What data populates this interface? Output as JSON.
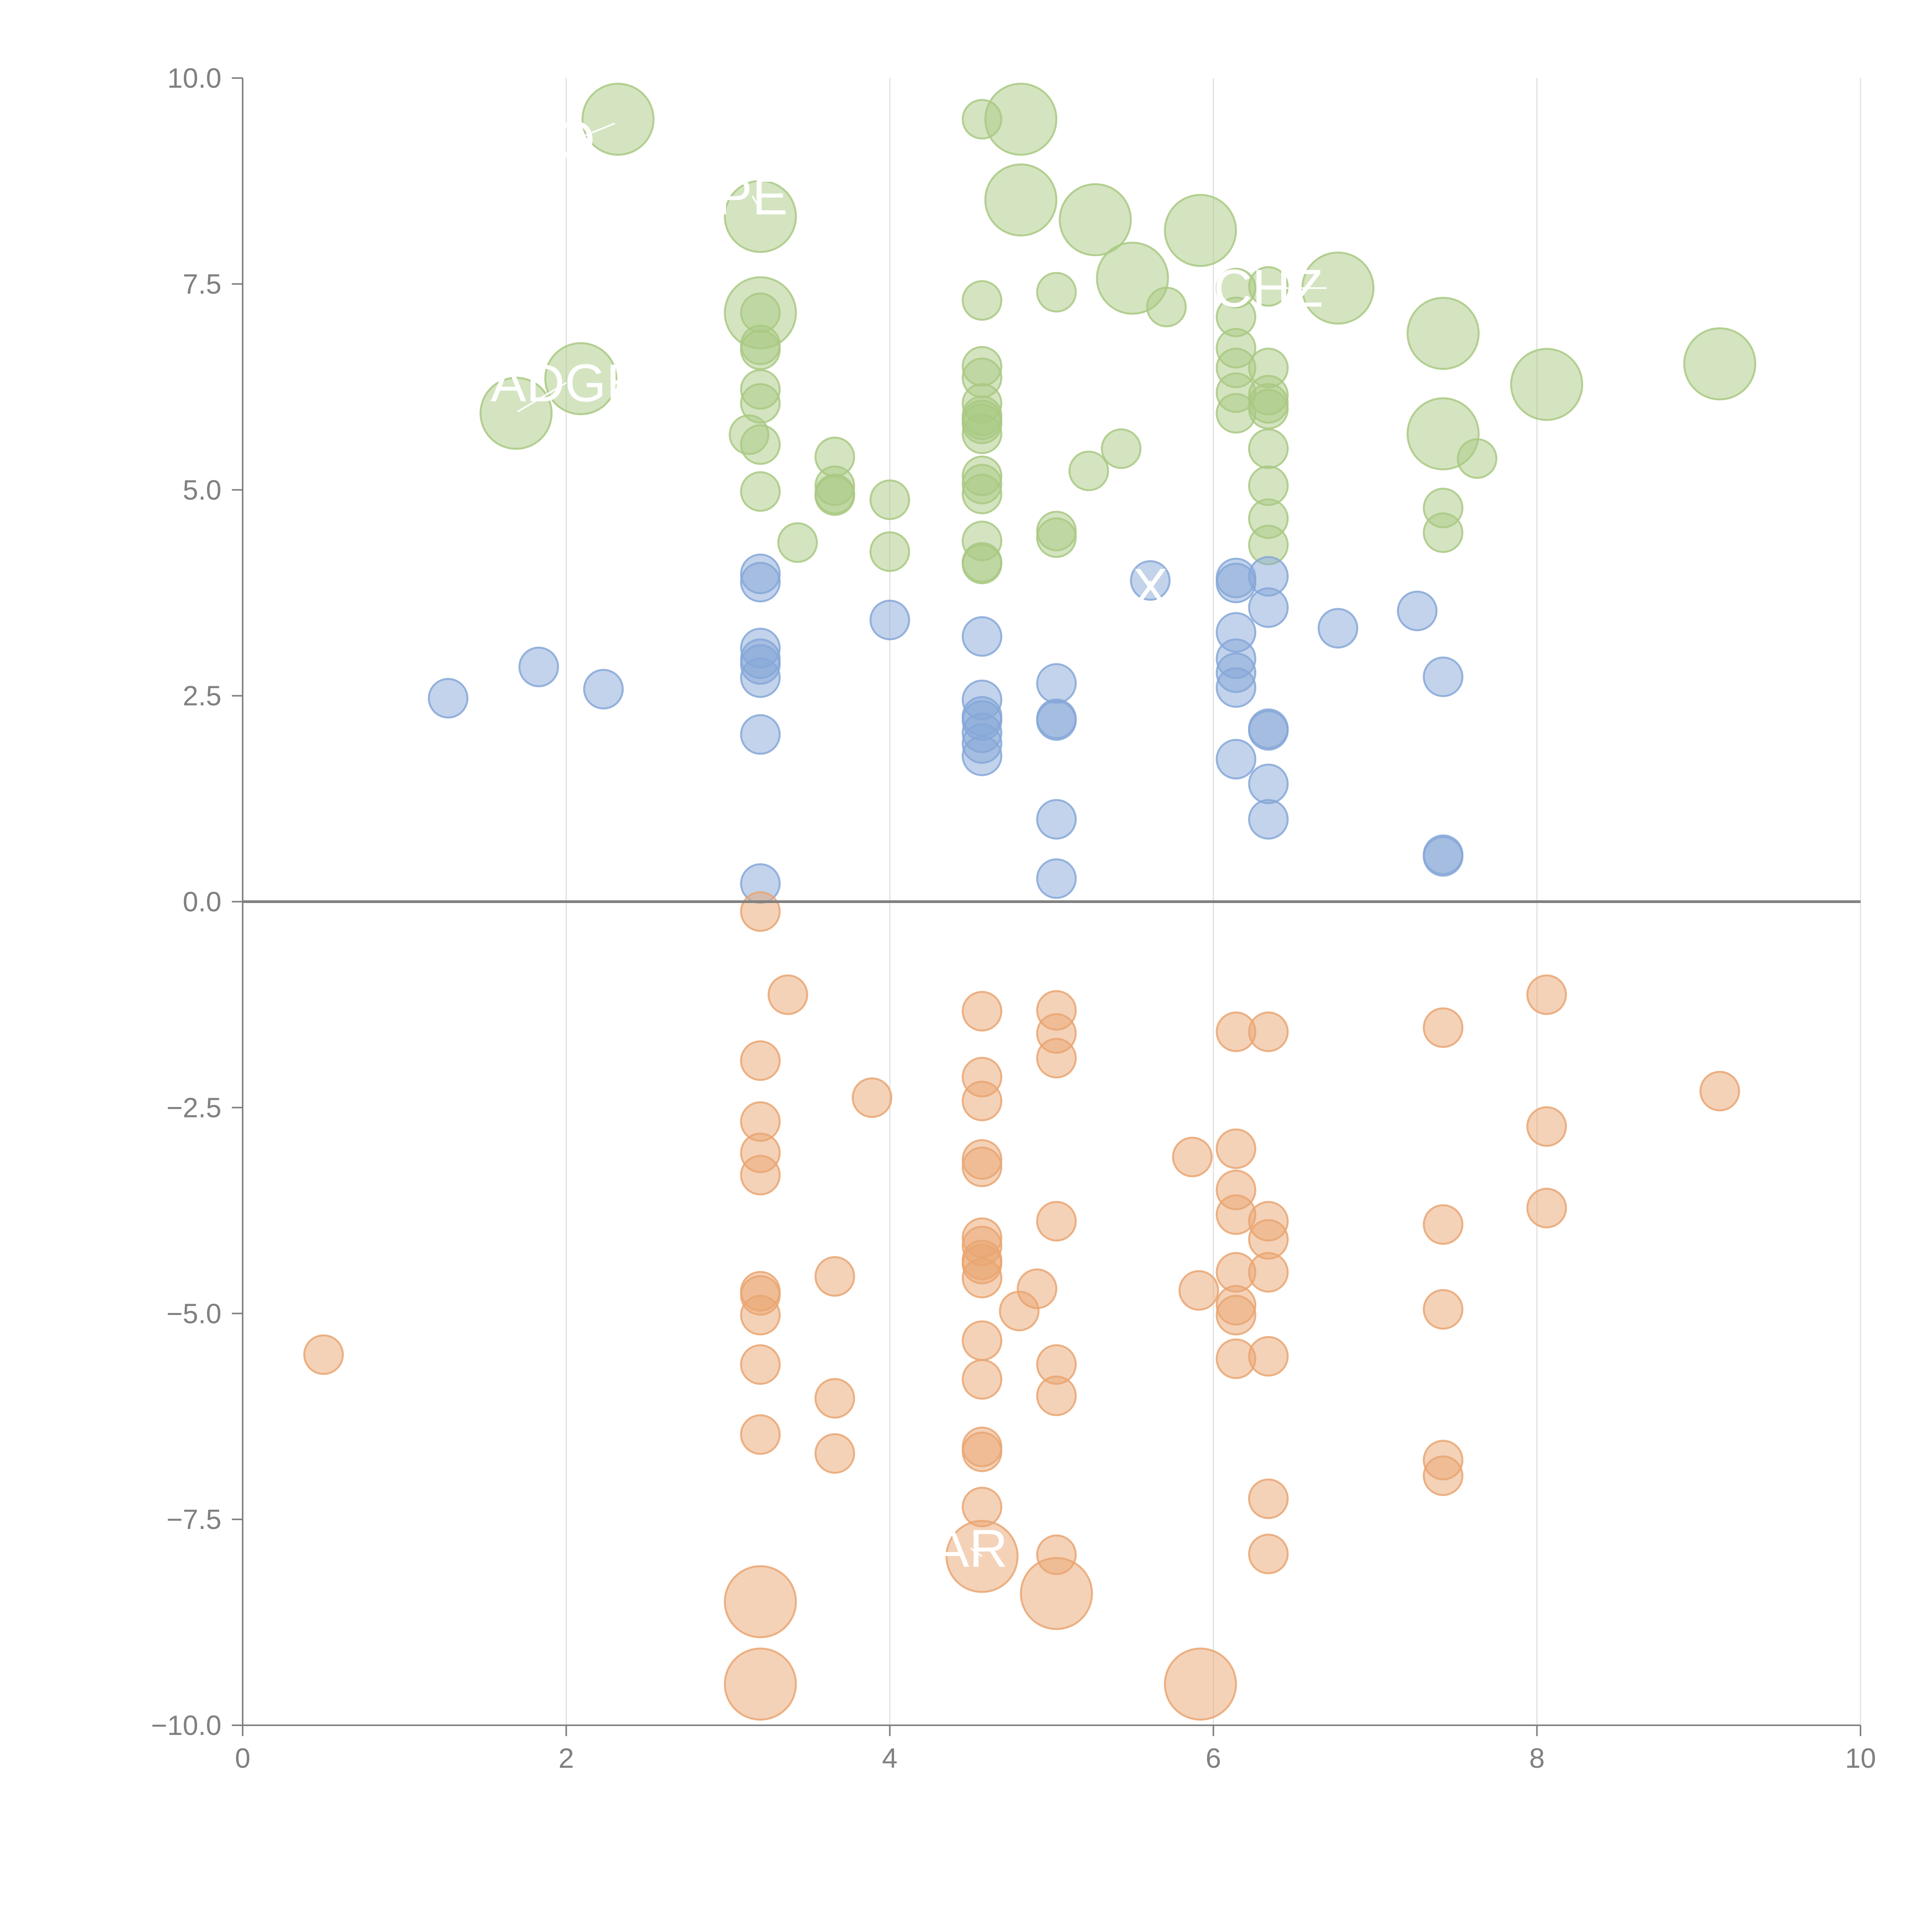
{
  "chart_data": {
    "type": "scatter",
    "xlim": [
      0,
      10
    ],
    "ylim": [
      -10,
      10
    ],
    "x_ticks": [
      "0",
      "2",
      "4",
      "6",
      "8",
      "10"
    ],
    "y_ticks": [
      "−10.0",
      "−7.5",
      "−5.0",
      "−2.5",
      "0.0",
      "2.5",
      "5.0",
      "7.5",
      "10.0"
    ],
    "x_tick_values": [
      0,
      2,
      4,
      6,
      8,
      10
    ],
    "y_tick_values": [
      -10,
      -7.5,
      -5,
      -2.5,
      0,
      2.5,
      5,
      7.5,
      10
    ],
    "grid": {
      "vertical": true,
      "horizontal": false
    },
    "zero_line": true,
    "series": [
      {
        "color": "#a9c983",
        "points": [
          [
            2.32,
            9.5,
            2
          ],
          [
            4.57,
            9.5,
            1
          ],
          [
            4.81,
            9.5,
            2
          ],
          [
            4.81,
            8.52,
            2
          ],
          [
            5.27,
            8.28,
            2
          ],
          [
            5.92,
            8.15,
            2
          ],
          [
            3.2,
            8.32,
            2
          ],
          [
            3.2,
            7.15,
            2
          ],
          [
            3.2,
            7.15,
            1
          ],
          [
            3.2,
            6.76,
            1
          ],
          [
            3.2,
            6.7,
            1
          ],
          [
            3.2,
            6.22,
            1
          ],
          [
            3.2,
            6.05,
            1
          ],
          [
            3.2,
            5.55,
            1
          ],
          [
            3.13,
            5.67,
            1
          ],
          [
            3.2,
            4.98,
            1
          ],
          [
            3.43,
            4.36,
            1
          ],
          [
            3.66,
            5.4,
            1
          ],
          [
            3.66,
            5.05,
            1
          ],
          [
            3.66,
            4.95,
            1
          ],
          [
            3.66,
            4.93,
            1
          ],
          [
            4.0,
            4.88,
            1
          ],
          [
            4.0,
            4.25,
            1
          ],
          [
            4.57,
            7.3,
            1
          ],
          [
            4.57,
            6.5,
            1
          ],
          [
            4.57,
            6.36,
            1
          ],
          [
            4.57,
            6.05,
            1
          ],
          [
            4.57,
            5.9,
            1
          ],
          [
            4.57,
            5.85,
            1
          ],
          [
            4.57,
            5.8,
            1
          ],
          [
            4.57,
            5.68,
            1
          ],
          [
            4.57,
            5.17,
            1
          ],
          [
            4.57,
            5.07,
            1
          ],
          [
            4.57,
            4.95,
            1
          ],
          [
            4.57,
            4.38,
            1
          ],
          [
            4.57,
            4.12,
            1
          ],
          [
            4.57,
            4.1,
            1
          ],
          [
            5.03,
            7.4,
            1
          ],
          [
            5.03,
            4.5,
            1
          ],
          [
            5.03,
            4.42,
            1
          ],
          [
            5.23,
            5.23,
            1
          ],
          [
            5.43,
            5.5,
            1
          ],
          [
            5.5,
            7.57,
            2
          ],
          [
            5.71,
            7.22,
            1
          ],
          [
            6.14,
            7.45,
            1
          ],
          [
            6.14,
            7.1,
            1
          ],
          [
            6.14,
            6.72,
            1
          ],
          [
            6.14,
            6.48,
            1
          ],
          [
            6.14,
            6.18,
            1
          ],
          [
            6.14,
            5.93,
            1
          ],
          [
            6.34,
            7.47,
            1
          ],
          [
            6.34,
            6.48,
            1
          ],
          [
            6.34,
            6.15,
            1
          ],
          [
            6.34,
            6.05,
            1
          ],
          [
            6.34,
            5.98,
            1
          ],
          [
            6.34,
            5.5,
            1
          ],
          [
            6.34,
            5.05,
            1
          ],
          [
            6.34,
            4.65,
            1
          ],
          [
            6.34,
            4.33,
            1
          ],
          [
            6.77,
            7.45,
            2
          ],
          [
            7.42,
            6.9,
            2
          ],
          [
            7.42,
            5.68,
            2
          ],
          [
            7.42,
            4.78,
            1
          ],
          [
            7.42,
            4.48,
            1
          ],
          [
            7.63,
            5.38,
            1
          ],
          [
            8.06,
            6.28,
            2
          ],
          [
            9.13,
            6.53,
            2
          ],
          [
            2.09,
            6.35,
            2
          ],
          [
            1.69,
            5.93,
            2
          ]
        ]
      },
      {
        "color": "#86a7d8",
        "points": [
          [
            1.27,
            2.47,
            1
          ],
          [
            1.83,
            2.85,
            1
          ],
          [
            2.23,
            2.58,
            1
          ],
          [
            3.2,
            3.98,
            1
          ],
          [
            3.2,
            3.88,
            1
          ],
          [
            3.2,
            3.08,
            1
          ],
          [
            3.2,
            2.95,
            1
          ],
          [
            3.2,
            2.88,
            1
          ],
          [
            3.2,
            2.72,
            1
          ],
          [
            3.2,
            2.03,
            1
          ],
          [
            3.2,
            0.22,
            1
          ],
          [
            4.0,
            3.42,
            1
          ],
          [
            4.57,
            3.22,
            1
          ],
          [
            4.57,
            2.45,
            1
          ],
          [
            4.57,
            2.25,
            1
          ],
          [
            4.57,
            2.2,
            1
          ],
          [
            4.57,
            2.05,
            1
          ],
          [
            4.57,
            1.92,
            1
          ],
          [
            4.57,
            1.77,
            1
          ],
          [
            5.03,
            2.65,
            1
          ],
          [
            5.03,
            2.22,
            1
          ],
          [
            5.03,
            2.2,
            1
          ],
          [
            5.03,
            1.0,
            1
          ],
          [
            5.03,
            0.28,
            1
          ],
          [
            5.61,
            3.9,
            1
          ],
          [
            6.14,
            3.93,
            1
          ],
          [
            6.14,
            3.87,
            1
          ],
          [
            6.14,
            3.27,
            1
          ],
          [
            6.14,
            2.95,
            1
          ],
          [
            6.14,
            2.78,
            1
          ],
          [
            6.14,
            2.6,
            1
          ],
          [
            6.14,
            1.73,
            1
          ],
          [
            6.34,
            3.95,
            1
          ],
          [
            6.34,
            3.57,
            1
          ],
          [
            6.34,
            2.1,
            1
          ],
          [
            6.34,
            2.08,
            1
          ],
          [
            6.34,
            1.43,
            1
          ],
          [
            6.34,
            1.0,
            1
          ],
          [
            6.77,
            3.32,
            1
          ],
          [
            7.26,
            3.53,
            1
          ],
          [
            7.42,
            2.73,
            1
          ],
          [
            7.42,
            0.57,
            1
          ],
          [
            7.42,
            0.55,
            1
          ]
        ]
      },
      {
        "color": "#e9a672",
        "points": [
          [
            0.5,
            -5.5,
            1
          ],
          [
            3.2,
            -0.12,
            1
          ],
          [
            3.2,
            -1.93,
            1
          ],
          [
            3.2,
            -2.67,
            1
          ],
          [
            3.2,
            -3.05,
            1
          ],
          [
            3.2,
            -3.32,
            1
          ],
          [
            3.2,
            -4.73,
            1
          ],
          [
            3.2,
            -4.78,
            1
          ],
          [
            3.2,
            -5.02,
            1
          ],
          [
            3.2,
            -5.62,
            1
          ],
          [
            3.2,
            -6.47,
            1
          ],
          [
            3.2,
            -8.5,
            2
          ],
          [
            3.2,
            -9.5,
            2
          ],
          [
            3.37,
            -1.13,
            1
          ],
          [
            3.66,
            -4.55,
            1
          ],
          [
            3.66,
            -6.03,
            1
          ],
          [
            3.66,
            -6.7,
            1
          ],
          [
            3.89,
            -2.38,
            1
          ],
          [
            4.57,
            -1.33,
            1
          ],
          [
            4.57,
            -2.13,
            1
          ],
          [
            4.57,
            -2.42,
            1
          ],
          [
            4.57,
            -3.13,
            1
          ],
          [
            4.57,
            -3.22,
            1
          ],
          [
            4.57,
            -4.08,
            1
          ],
          [
            4.57,
            -4.18,
            1
          ],
          [
            4.57,
            -4.35,
            1
          ],
          [
            4.57,
            -4.4,
            1
          ],
          [
            4.57,
            -4.57,
            1
          ],
          [
            4.57,
            -5.33,
            1
          ],
          [
            4.57,
            -5.8,
            1
          ],
          [
            4.57,
            -6.62,
            1
          ],
          [
            4.57,
            -6.68,
            1
          ],
          [
            4.57,
            -7.35,
            1
          ],
          [
            4.57,
            -7.95,
            2
          ],
          [
            4.8,
            -4.97,
            1
          ],
          [
            4.91,
            -4.7,
            1
          ],
          [
            5.03,
            -1.32,
            1
          ],
          [
            5.03,
            -1.6,
            1
          ],
          [
            5.03,
            -1.9,
            1
          ],
          [
            5.03,
            -3.88,
            1
          ],
          [
            5.03,
            -5.62,
            1
          ],
          [
            5.03,
            -6.0,
            1
          ],
          [
            5.03,
            -7.93,
            1
          ],
          [
            5.03,
            -8.4,
            2
          ],
          [
            5.87,
            -3.1,
            1
          ],
          [
            5.91,
            -4.72,
            1
          ],
          [
            5.92,
            -9.5,
            2
          ],
          [
            6.14,
            -1.58,
            1
          ],
          [
            6.14,
            -3.0,
            1
          ],
          [
            6.14,
            -3.5,
            1
          ],
          [
            6.14,
            -3.8,
            1
          ],
          [
            6.14,
            -4.5,
            1
          ],
          [
            6.14,
            -4.9,
            1
          ],
          [
            6.14,
            -5.02,
            1
          ],
          [
            6.14,
            -5.55,
            1
          ],
          [
            6.34,
            -1.58,
            1
          ],
          [
            6.34,
            -3.88,
            1
          ],
          [
            6.34,
            -4.1,
            1
          ],
          [
            6.34,
            -4.5,
            1
          ],
          [
            6.34,
            -5.52,
            1
          ],
          [
            6.34,
            -7.25,
            1
          ],
          [
            6.34,
            -7.92,
            1
          ],
          [
            7.42,
            -1.53,
            1
          ],
          [
            7.42,
            -3.92,
            1
          ],
          [
            7.42,
            -4.95,
            1
          ],
          [
            7.42,
            -6.78,
            1
          ],
          [
            7.42,
            -6.97,
            1
          ],
          [
            8.06,
            -1.13,
            1
          ],
          [
            8.06,
            -2.73,
            1
          ],
          [
            8.06,
            -3.72,
            1
          ],
          [
            9.13,
            -2.3,
            1
          ]
        ]
      }
    ],
    "labels": [
      {
        "text": "O",
        "x": 2.05,
        "y": 9.25,
        "ax": 2.3,
        "ay": 9.45
      },
      {
        "text": "PE",
        "x": 3.15,
        "y": 8.57,
        "ax": 3.2,
        "ay": 8.4
      },
      {
        "text": "CHZ",
        "x": 6.34,
        "y": 7.45,
        "ax": 6.7,
        "ay": 7.45
      },
      {
        "text": "ADGE",
        "x": 2.0,
        "y": 6.3,
        "ax": 1.7,
        "ay": 5.95
      },
      {
        "text": "X",
        "x": 5.61,
        "y": 3.82,
        "ax": 5.61,
        "ay": 3.9
      },
      {
        "text": "AR",
        "x": 4.5,
        "y": -7.85,
        "ax": 4.57,
        "ay": -7.95
      }
    ]
  }
}
